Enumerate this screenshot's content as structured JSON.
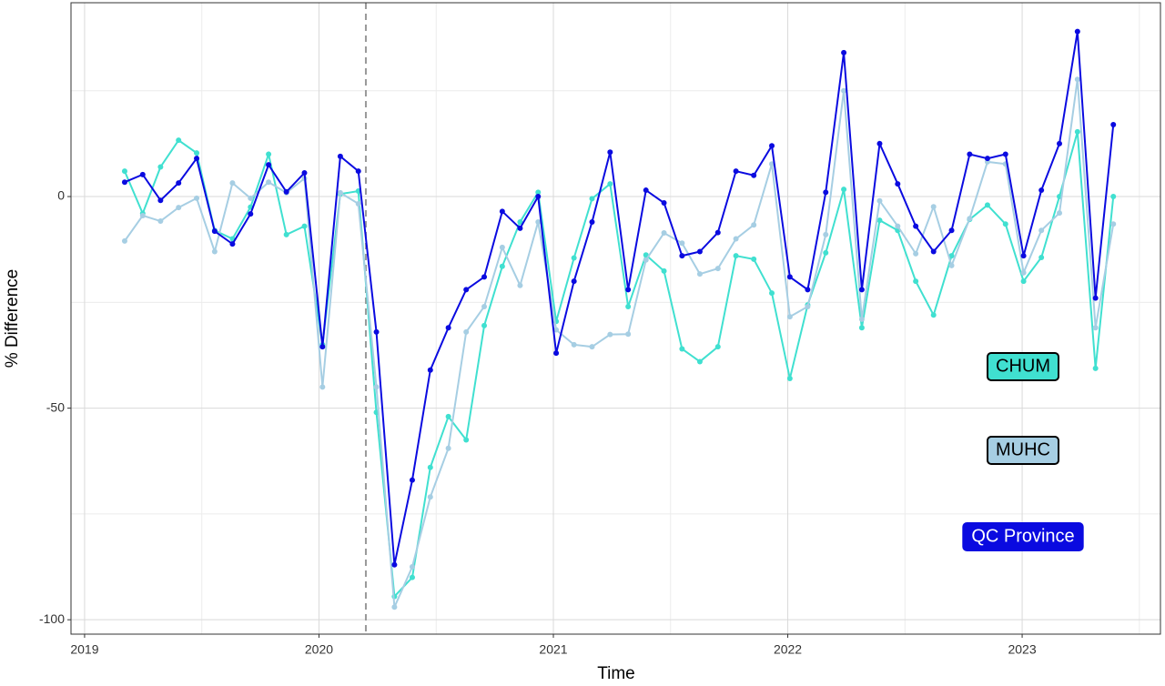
{
  "chart_data": {
    "type": "line",
    "x_label": "Time",
    "y_label": "% Difference",
    "x": [
      2019.171,
      2019.248,
      2019.324,
      2019.401,
      2019.478,
      2019.555,
      2019.631,
      2019.708,
      2019.785,
      2019.861,
      2019.938,
      2020.015,
      2020.091,
      2020.168,
      2020.245,
      2020.322,
      2020.398,
      2020.475,
      2020.552,
      2020.628,
      2020.705,
      2020.782,
      2020.858,
      2020.935,
      2021.012,
      2021.088,
      2021.165,
      2021.242,
      2021.319,
      2021.395,
      2021.472,
      2021.549,
      2021.625,
      2021.702,
      2021.779,
      2021.855,
      2021.932,
      2022.009,
      2022.085,
      2022.162,
      2022.239,
      2022.316,
      2022.392,
      2022.469,
      2022.546,
      2022.622,
      2022.699,
      2022.776,
      2022.852,
      2022.929,
      2023.006,
      2023.082,
      2023.159,
      2023.236,
      2023.313,
      2023.389
    ],
    "series": [
      {
        "name": "CHUM",
        "color": "#40e0d0",
        "label_color": "#000000",
        "border_color": "#000000",
        "values": [
          6,
          -4,
          7,
          13.3,
          10.3,
          -8,
          -10,
          -2.5,
          10,
          -9,
          -7,
          -35,
          0.6,
          1.3,
          -51,
          -94.5,
          -90,
          -64,
          -52,
          -57.5,
          -30.5,
          -16.5,
          -6,
          1,
          -29.5,
          -14.5,
          -0.5,
          3,
          -26,
          -13.8,
          -17.6,
          -36,
          -39,
          -35.5,
          -14,
          -14.8,
          -22.8,
          -43,
          -25.6,
          -13.3,
          1.7,
          -31,
          -5.6,
          -8,
          -20,
          -28,
          -14,
          -5.4,
          -2,
          -6.5,
          -20,
          -14.4,
          0,
          15.3,
          -40.6,
          0
        ]
      },
      {
        "name": "MUHC",
        "color": "#a6cee3",
        "label_color": "#000000",
        "border_color": "#000000",
        "values": [
          -10.5,
          -4.5,
          -5.8,
          -2.6,
          -0.4,
          -13,
          3.2,
          -0.4,
          3.4,
          0.9,
          4.3,
          -45,
          0.9,
          -1.7,
          -45,
          -97,
          -87.5,
          -71,
          -59.5,
          -32,
          -26,
          -12,
          -21,
          -6,
          -31.5,
          -35,
          -35.5,
          -32.6,
          -32.5,
          -15,
          -8.6,
          -11,
          -18.3,
          -17,
          -10,
          -6.7,
          7.7,
          -28.4,
          -26,
          -9,
          25,
          -29,
          -1,
          -7,
          -13.5,
          -2.4,
          -16.3,
          -5.2,
          8.2,
          7.7,
          -18,
          -8,
          -3.9,
          27.7,
          -31,
          -6.5
        ]
      },
      {
        "name": "QC Province",
        "color": "#0a0ae0",
        "label_color": "#ffffff",
        "border_color": "#0a0ae0",
        "values": [
          3.4,
          5.2,
          -0.9,
          3.2,
          9,
          -8.2,
          -11.2,
          -4.1,
          7.5,
          1.1,
          5.6,
          -35.5,
          9.5,
          6,
          -32,
          -87,
          -67,
          -41,
          -31,
          -22,
          -19,
          -3.5,
          -7.5,
          0,
          -37,
          -20,
          -6,
          10.5,
          -22,
          1.5,
          -1.5,
          -14,
          -13,
          -8.5,
          6,
          5,
          12,
          -19,
          -22,
          1,
          34,
          -22,
          12.5,
          3,
          -7,
          -13,
          -8,
          10,
          9,
          10,
          -14,
          1.5,
          12.5,
          39,
          -24,
          17
        ]
      }
    ],
    "xlim": [
      2018.942,
      2023.59
    ],
    "ylim": [
      -103.4,
      45.8
    ],
    "xticks": [
      2019,
      2020,
      2021,
      2022,
      2023
    ],
    "yticks": [
      -100,
      -50,
      0
    ],
    "minor_xticks": [
      2019.5,
      2020.5,
      2021.5,
      2022.5,
      2023.5
    ],
    "minor_yticks": [
      -75,
      -25,
      25
    ],
    "vline_x": 2020.2,
    "grid": true,
    "legend_position": "right"
  }
}
